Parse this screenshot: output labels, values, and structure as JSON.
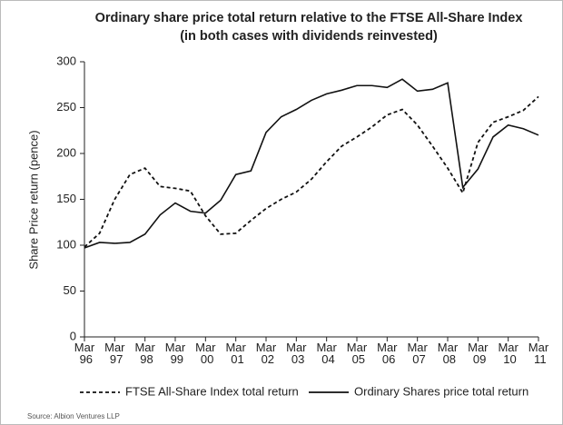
{
  "chart_data": {
    "type": "line",
    "title": [
      "Ordinary share price total  return relative to the FTSE All-Share Index",
      "(in both cases with dividends reinvested)"
    ],
    "y_label": "Share Price return (pence)",
    "source": "Source: Albion Ventures LLP",
    "categories": [
      "Mar 96",
      null,
      "Mar 97",
      null,
      "Mar 98",
      null,
      "Mar 99",
      null,
      "Mar 00",
      null,
      "Mar 01",
      null,
      "Mar 02",
      null,
      "Mar 03",
      null,
      "Mar 04",
      null,
      "Mar 05",
      null,
      "Mar 06",
      null,
      "Mar 07",
      null,
      "Mar 08",
      null,
      "Mar 09",
      null,
      "Mar 10",
      null,
      "Mar 11"
    ],
    "series": [
      {
        "name": "FTSE All-Share Index total return",
        "color": "#111111",
        "dash": true,
        "values": [
          98,
          113,
          150,
          177,
          184,
          164,
          162,
          159,
          132,
          112,
          113,
          127,
          140,
          150,
          158,
          172,
          191,
          208,
          218,
          229,
          242,
          248,
          231,
          208,
          184,
          157,
          212,
          234,
          240,
          247,
          262
        ]
      },
      {
        "name": "Ordinary Shares price total return",
        "color": "#111111",
        "dash": false,
        "values": [
          97,
          103,
          102,
          103,
          112,
          133,
          146,
          137,
          135,
          149,
          177,
          181,
          223,
          240,
          248,
          258,
          265,
          269,
          274,
          274,
          272,
          281,
          268,
          270,
          277,
          163,
          183,
          218,
          231,
          227,
          220
        ]
      }
    ],
    "ylim": [
      0,
      300
    ],
    "yticks": [
      0,
      50,
      100,
      150,
      200,
      250,
      300
    ],
    "legend": "bottom"
  }
}
